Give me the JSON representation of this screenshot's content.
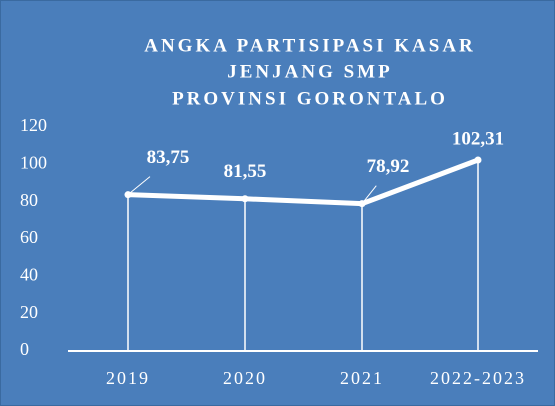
{
  "chart_data": {
    "type": "line",
    "title": [
      "ANGKA PARTISIPASI KASAR",
      "JENJANG SMP",
      "PROVINSI GORONTALO"
    ],
    "categories": [
      "2019",
      "2020",
      "2021",
      "2022-2023"
    ],
    "series": [
      {
        "name": null,
        "color": "#ffffff",
        "values": [
          83.75,
          81.55,
          78.92,
          102.31
        ],
        "value_labels": [
          "83,75",
          "81,55",
          "78,92",
          "102,31"
        ]
      }
    ],
    "ylim": [
      0,
      120
    ],
    "yticks": [
      0,
      20,
      40,
      60,
      80,
      100,
      120
    ],
    "background": "#4a7ebb",
    "drop_lines": true
  }
}
